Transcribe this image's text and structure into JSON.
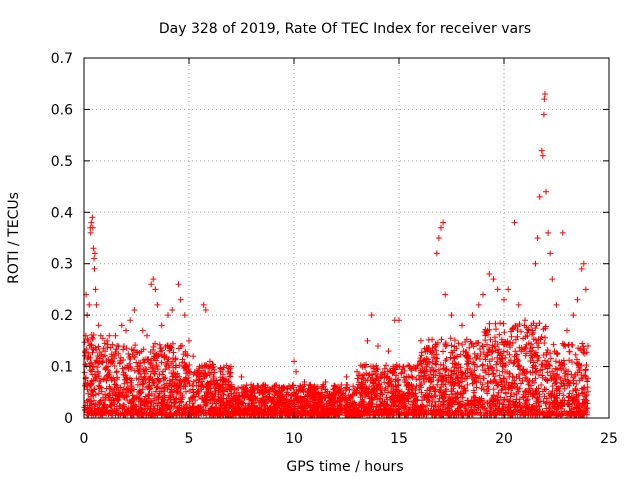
{
  "chart_data": {
    "type": "scatter",
    "title": "Day 328 of 2019, Rate Of TEC Index for receiver vars",
    "xlabel": "GPS time / hours",
    "ylabel": "ROTI / TECUs",
    "xlim": [
      0,
      25
    ],
    "ylim": [
      0,
      0.7
    ],
    "xticks": [
      "0",
      "5",
      "10",
      "15",
      "20",
      "25"
    ],
    "yticks": [
      "0",
      "0.1",
      "0.2",
      "0.3",
      "0.4",
      "0.5",
      "0.6",
      "0.7"
    ],
    "grid": true,
    "marker": "+",
    "color": "#ff0000",
    "series": [
      {
        "name": "ROTI",
        "points": [
          [
            0.05,
            0.13
          ],
          [
            0.1,
            0.24
          ],
          [
            0.15,
            0.2
          ],
          [
            0.2,
            0.15
          ],
          [
            0.25,
            0.22
          ],
          [
            0.3,
            0.37
          ],
          [
            0.32,
            0.36
          ],
          [
            0.35,
            0.38
          ],
          [
            0.4,
            0.39
          ],
          [
            0.42,
            0.37
          ],
          [
            0.45,
            0.33
          ],
          [
            0.48,
            0.31
          ],
          [
            0.5,
            0.29
          ],
          [
            0.52,
            0.32
          ],
          [
            0.55,
            0.25
          ],
          [
            0.6,
            0.22
          ],
          [
            0.7,
            0.18
          ],
          [
            0.8,
            0.16
          ],
          [
            1.0,
            0.13
          ],
          [
            1.1,
            0.15
          ],
          [
            1.2,
            0.16
          ],
          [
            1.5,
            0.16
          ],
          [
            1.8,
            0.18
          ],
          [
            2.0,
            0.17
          ],
          [
            2.2,
            0.19
          ],
          [
            2.4,
            0.21
          ],
          [
            2.8,
            0.17
          ],
          [
            3.0,
            0.16
          ],
          [
            3.2,
            0.26
          ],
          [
            3.3,
            0.27
          ],
          [
            3.4,
            0.25
          ],
          [
            3.5,
            0.22
          ],
          [
            3.7,
            0.18
          ],
          [
            4.0,
            0.2
          ],
          [
            4.2,
            0.21
          ],
          [
            4.5,
            0.26
          ],
          [
            4.6,
            0.23
          ],
          [
            4.8,
            0.2
          ],
          [
            5.0,
            0.15
          ],
          [
            5.2,
            0.12
          ],
          [
            5.5,
            0.1
          ],
          [
            5.7,
            0.22
          ],
          [
            5.8,
            0.21
          ],
          [
            6.0,
            0.11
          ],
          [
            6.5,
            0.09
          ],
          [
            7.0,
            0.1
          ],
          [
            7.5,
            0.08
          ],
          [
            8.0,
            0.06
          ],
          [
            8.5,
            0.05
          ],
          [
            9.0,
            0.04
          ],
          [
            9.5,
            0.06
          ],
          [
            10.0,
            0.11
          ],
          [
            10.1,
            0.09
          ],
          [
            10.5,
            0.07
          ],
          [
            11.0,
            0.05
          ],
          [
            11.5,
            0.07
          ],
          [
            12.0,
            0.06
          ],
          [
            12.5,
            0.08
          ],
          [
            13.0,
            0.09
          ],
          [
            13.5,
            0.15
          ],
          [
            13.7,
            0.2
          ],
          [
            14.0,
            0.14
          ],
          [
            14.5,
            0.13
          ],
          [
            14.8,
            0.19
          ],
          [
            15.0,
            0.19
          ],
          [
            15.2,
            0.1
          ],
          [
            15.5,
            0.1
          ],
          [
            16.0,
            0.11
          ],
          [
            16.5,
            0.13
          ],
          [
            16.8,
            0.32
          ],
          [
            16.9,
            0.35
          ],
          [
            17.0,
            0.37
          ],
          [
            17.1,
            0.38
          ],
          [
            17.2,
            0.24
          ],
          [
            17.5,
            0.2
          ],
          [
            18.0,
            0.18
          ],
          [
            18.5,
            0.2
          ],
          [
            18.8,
            0.22
          ],
          [
            19.0,
            0.24
          ],
          [
            19.3,
            0.28
          ],
          [
            19.5,
            0.27
          ],
          [
            19.7,
            0.25
          ],
          [
            20.0,
            0.23
          ],
          [
            20.2,
            0.25
          ],
          [
            20.5,
            0.38
          ],
          [
            20.7,
            0.22
          ],
          [
            21.0,
            0.19
          ],
          [
            21.3,
            0.18
          ],
          [
            21.5,
            0.3
          ],
          [
            21.6,
            0.35
          ],
          [
            21.7,
            0.43
          ],
          [
            21.8,
            0.52
          ],
          [
            21.85,
            0.51
          ],
          [
            21.9,
            0.59
          ],
          [
            21.92,
            0.62
          ],
          [
            21.95,
            0.63
          ],
          [
            22.0,
            0.44
          ],
          [
            22.1,
            0.36
          ],
          [
            22.2,
            0.32
          ],
          [
            22.3,
            0.27
          ],
          [
            22.5,
            0.22
          ],
          [
            22.8,
            0.36
          ],
          [
            23.0,
            0.17
          ],
          [
            23.3,
            0.2
          ],
          [
            23.5,
            0.23
          ],
          [
            23.7,
            0.29
          ],
          [
            23.8,
            0.3
          ],
          [
            23.9,
            0.25
          ],
          [
            24.0,
            0.14
          ]
        ]
      }
    ]
  }
}
